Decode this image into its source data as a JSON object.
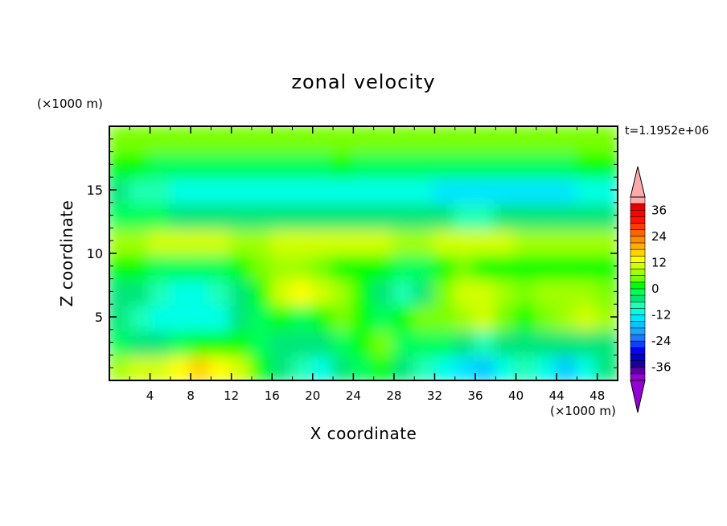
{
  "chart_data": {
    "type": "heatmap",
    "title": "zonal velocity",
    "xlabel": "X coordinate",
    "ylabel": "Z coordinate",
    "x_unit": "(×1000 m)",
    "z_unit": "(×1000 m)",
    "time_label": "t=1.1952e+06",
    "xlim": [
      0,
      50
    ],
    "zlim": [
      0,
      20
    ],
    "x_ticks": [
      "4",
      "8",
      "12",
      "16",
      "20",
      "24",
      "28",
      "32",
      "36",
      "40",
      "44",
      "48"
    ],
    "z_ticks": [
      "5",
      "10",
      "15"
    ],
    "colorbar": {
      "levels": [
        -42,
        -39,
        -36,
        -33,
        -30,
        -27,
        -24,
        -21,
        -18,
        -15,
        -12,
        -9,
        -6,
        -3,
        0,
        3,
        6,
        9,
        12,
        15,
        18,
        21,
        24,
        27,
        30,
        33,
        36,
        39,
        42
      ],
      "tick_labels": [
        "36",
        "24",
        "12",
        "0",
        "-12",
        "-24",
        "-36"
      ],
      "colors": [
        "#9400d3",
        "#5a00a0",
        "#1e0096",
        "#0000c8",
        "#0000ff",
        "#0a41ff",
        "#1e78ff",
        "#1ea5ff",
        "#00c8ff",
        "#00e6ff",
        "#00ffe6",
        "#1effb4",
        "#00e678",
        "#00ff5a",
        "#00ff00",
        "#78ff00",
        "#a0ff00",
        "#d2ff00",
        "#ffff00",
        "#ffd200",
        "#ffaf00",
        "#ff8c00",
        "#ff6400",
        "#ff3c00",
        "#ff1400",
        "#ff0000",
        "#e60000",
        "#ffaaaa"
      ],
      "under_color": "#9400d3",
      "over_color": "#ffaaaa"
    },
    "field_note_grid": {
      "nx": 25,
      "nz": 10,
      "x_centers_km": [
        1,
        3,
        5,
        7,
        9,
        11,
        13,
        15,
        17,
        19,
        21,
        23,
        25,
        27,
        29,
        31,
        33,
        35,
        37,
        39,
        41,
        43,
        45,
        47,
        49
      ],
      "z_centers_km": [
        1,
        3,
        5,
        7,
        9,
        11,
        13,
        15,
        17,
        19
      ],
      "values_ms": [
        [
          6,
          9,
          11,
          14,
          15,
          14,
          10,
          2,
          -4,
          -9,
          -10,
          -6,
          -2,
          1,
          -4,
          -8,
          -10,
          -14,
          -18,
          -12,
          -8,
          -12,
          -16,
          -10,
          -6
        ],
        [
          -2,
          -4,
          -6,
          -3,
          0,
          2,
          1,
          -1,
          -6,
          -6,
          -4,
          -2,
          2,
          3,
          -1,
          -2,
          -3,
          -6,
          -8,
          -6,
          -4,
          -5,
          -6,
          -6,
          -4
        ],
        [
          -6,
          -8,
          -10,
          -12,
          -12,
          -10,
          -6,
          -2,
          1,
          -1,
          2,
          4,
          1,
          -2,
          0,
          3,
          5,
          8,
          9,
          5,
          2,
          3,
          8,
          10,
          6
        ],
        [
          -4,
          -6,
          -8,
          -10,
          -10,
          -8,
          -5,
          1,
          10,
          13,
          11,
          6,
          0,
          -6,
          -8,
          -5,
          4,
          9,
          11,
          6,
          3,
          6,
          8,
          6,
          4
        ],
        [
          2,
          0,
          -2,
          -3,
          -2,
          -1,
          0,
          3,
          6,
          8,
          4,
          2,
          1,
          0,
          -2,
          -1,
          2,
          3,
          2,
          1,
          0,
          1,
          2,
          2,
          1
        ],
        [
          6,
          8,
          10,
          10,
          10,
          9,
          8,
          8,
          9,
          10,
          11,
          10,
          9,
          9,
          8,
          8,
          9,
          10,
          10,
          9,
          8,
          8,
          8,
          8,
          7
        ],
        [
          -1,
          -2,
          -3,
          -5,
          -6,
          -6,
          -5,
          -4,
          -4,
          -5,
          -6,
          -6,
          -5,
          -4,
          -5,
          -6,
          -6,
          -7,
          -7,
          -6,
          -6,
          -6,
          -6,
          -5,
          -4
        ],
        [
          -6,
          -7,
          -9,
          -10,
          -12,
          -12,
          -11,
          -10,
          -10,
          -11,
          -12,
          -12,
          -11,
          -11,
          -12,
          -12,
          -13,
          -14,
          -14,
          -14,
          -13,
          -13,
          -13,
          -12,
          -11
        ],
        [
          0,
          0,
          -1,
          -2,
          -3,
          -2,
          -1,
          -2,
          -3,
          -2,
          -1,
          0,
          -1,
          -2,
          -3,
          -2,
          -1,
          -2,
          -3,
          -2,
          -1,
          -1,
          -1,
          0,
          0
        ],
        [
          4,
          4,
          5,
          4,
          3,
          4,
          5,
          4,
          3,
          4,
          5,
          4,
          3,
          3,
          4,
          4,
          3,
          3,
          4,
          4,
          3,
          3,
          4,
          3,
          3
        ]
      ]
    }
  }
}
